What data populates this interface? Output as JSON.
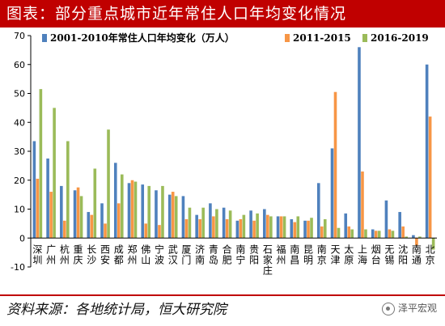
{
  "header": {
    "title": "图表：部分重点城市近年常住人口年均变化情况"
  },
  "footer": {
    "source": "资料来源：各地统计局，恒大研究院",
    "watermark": "泽平宏观"
  },
  "chart_data": {
    "type": "bar",
    "title": "图表：部分重点城市近年常住人口年均变化情况",
    "ylim": [
      -10,
      70
    ],
    "yticks": [
      -10,
      0,
      10,
      20,
      30,
      40,
      50,
      60,
      70
    ],
    "grid": false,
    "legend_position": "top-right",
    "categories": [
      "深圳",
      "广州",
      "杭州",
      "重庆",
      "长沙",
      "西安",
      "成都",
      "郑州",
      "佛山",
      "宁波",
      "武汉",
      "厦门",
      "济南",
      "青岛",
      "合肥",
      "南宁",
      "贵阳",
      "石家庄",
      "福州",
      "南昌",
      "昆明",
      "南京",
      "天津",
      "太原",
      "上海",
      "烟台",
      "无锡",
      "沈阳",
      "南通",
      "北京"
    ],
    "category_labels": [
      [
        "深",
        "圳"
      ],
      [
        "广",
        "州"
      ],
      [
        "杭",
        "州"
      ],
      [
        "重",
        "庆"
      ],
      [
        "长",
        "沙"
      ],
      [
        "西",
        "安"
      ],
      [
        "成",
        "都"
      ],
      [
        "郑",
        "州"
      ],
      [
        "佛",
        "山"
      ],
      [
        "宁",
        "波"
      ],
      [
        "武",
        "汉"
      ],
      [
        "厦",
        "门"
      ],
      [
        "济",
        "南"
      ],
      [
        "青",
        "岛"
      ],
      [
        "合",
        "肥"
      ],
      [
        "南",
        "宁"
      ],
      [
        "贵",
        "阳"
      ],
      [
        "石",
        "家",
        "庄"
      ],
      [
        "福",
        "州"
      ],
      [
        "南",
        "昌"
      ],
      [
        "昆",
        "明"
      ],
      [
        "南",
        "京"
      ],
      [
        "天",
        "津"
      ],
      [
        "太",
        "原"
      ],
      [
        "上",
        "海"
      ],
      [
        "烟",
        "台"
      ],
      [
        "无",
        "锡"
      ],
      [
        "沈",
        "阳"
      ],
      [
        "南",
        "通"
      ],
      [
        "北",
        "京"
      ]
    ],
    "series": [
      {
        "name": "2001-2010年常住人口年均变化（万人）",
        "color": "#4f81bd",
        "values": [
          33.5,
          27.5,
          18,
          16.5,
          9,
          12,
          26,
          19,
          18.5,
          16.5,
          15,
          14.5,
          8,
          12,
          10.5,
          6,
          9.5,
          10,
          7.5,
          6.5,
          6,
          19,
          31,
          8.5,
          66,
          3,
          13,
          9,
          1,
          60
        ]
      },
      {
        "name": "2011-2015",
        "color": "#f79646",
        "values": [
          20.5,
          16,
          6,
          17.5,
          8,
          5,
          12,
          20,
          5,
          4.5,
          16,
          6.5,
          6.5,
          7.5,
          6.5,
          6.5,
          6,
          8,
          7.5,
          5.5,
          6,
          4,
          50.5,
          4,
          23,
          2.5,
          3,
          4,
          -2.5,
          42
        ]
      },
      {
        "name": "2016-2019",
        "color": "#9bbb59",
        "values": [
          51.5,
          45,
          33.5,
          14.5,
          24,
          37.5,
          22,
          19.5,
          18,
          18,
          14.5,
          10.5,
          10.5,
          10,
          9.5,
          8,
          8.5,
          7.5,
          7.5,
          7.5,
          7,
          6.5,
          3.5,
          3,
          3,
          2.5,
          2.5,
          0.5,
          0.5,
          -4
        ]
      }
    ]
  }
}
